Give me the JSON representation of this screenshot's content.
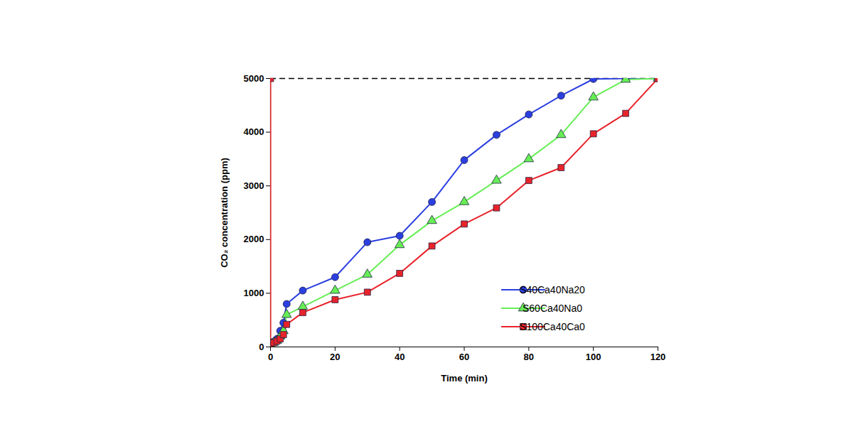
{
  "chart_data": {
    "type": "line",
    "x_label": "Time (min)",
    "y_label": "CO₂ concentration (ppm)",
    "x": [
      0,
      0,
      1,
      2,
      3,
      4,
      5,
      10,
      20,
      30,
      40,
      50,
      60,
      70,
      80,
      90,
      100,
      110,
      120
    ],
    "series": [
      {
        "name": "S40Ca40Na20",
        "color": "#2b3fe0",
        "marker": "circle",
        "values": [
          null,
          50,
          100,
          150,
          300,
          450,
          800,
          1050,
          1300,
          1950,
          2070,
          2700,
          3480,
          3950,
          4330,
          4680,
          4990,
          5000,
          5000
        ]
      },
      {
        "name": "S60Ca40Na0",
        "color": "#66ee55",
        "marker": "triangle",
        "values": [
          null,
          50,
          80,
          120,
          200,
          300,
          600,
          750,
          1050,
          1350,
          1900,
          2350,
          2700,
          3100,
          3500,
          3950,
          4650,
          4980,
          5000
        ]
      },
      {
        "name": "S100Ca40Ca0",
        "color": "#e8232a",
        "marker": "square",
        "values": [
          5000,
          50,
          80,
          110,
          150,
          230,
          420,
          640,
          880,
          1020,
          1370,
          1880,
          2290,
          2590,
          3100,
          3340,
          3970,
          4350,
          5000
        ]
      }
    ],
    "reference_lines": [
      {
        "y": 5000,
        "line_style": "dashed",
        "color": "#000000"
      }
    ],
    "xlim": [
      0,
      120
    ],
    "xticks": [
      0,
      20,
      40,
      60,
      80,
      100,
      120
    ],
    "ylim": [
      0,
      5000
    ],
    "yticks": [
      0,
      1000,
      2000,
      3000,
      4000,
      5000
    ],
    "legend": "lower right",
    "grid": false
  }
}
